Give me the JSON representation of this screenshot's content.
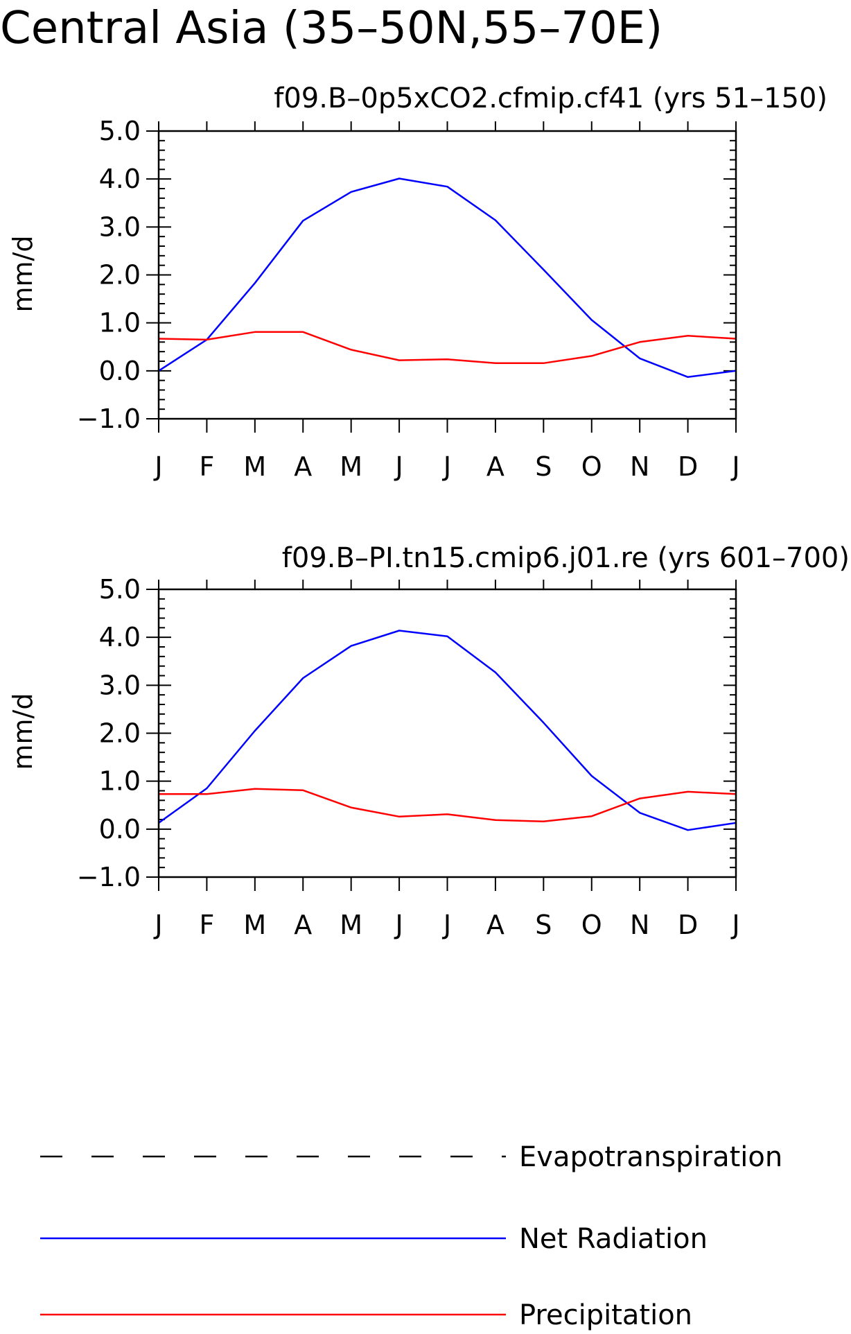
{
  "title": "Central Asia (35–50N,55–70E)",
  "colors": {
    "net_radiation": "#0000ff",
    "precipitation": "#ff0000",
    "evapotranspiration": "#000000"
  },
  "chart_data": [
    {
      "type": "line",
      "title": "f09.B–0p5xCO2.cfmip.cf41 (yrs 51–150)",
      "xlabel": "",
      "ylabel": "mm/d",
      "categories": [
        "J",
        "F",
        "M",
        "A",
        "M",
        "J",
        "J",
        "A",
        "S",
        "O",
        "N",
        "D",
        "J"
      ],
      "ylim": [
        -1.0,
        5.0
      ],
      "yticks": [
        "5.0",
        "4.0",
        "3.0",
        "2.0",
        "1.0",
        "0.0",
        "−1.0"
      ],
      "grid": false,
      "series": [
        {
          "name": "Net Radiation",
          "color": "#0000ff",
          "values": [
            0.0,
            0.65,
            1.83,
            3.13,
            3.73,
            4.01,
            3.84,
            3.14,
            2.11,
            1.06,
            0.26,
            -0.13,
            0.0
          ]
        },
        {
          "name": "Precipitation",
          "color": "#ff0000",
          "values": [
            0.67,
            0.65,
            0.81,
            0.81,
            0.44,
            0.22,
            0.24,
            0.16,
            0.16,
            0.31,
            0.6,
            0.73,
            0.67
          ]
        }
      ]
    },
    {
      "type": "line",
      "title": "f09.B–PI.tn15.cmip6.j01.re (yrs 601–700)",
      "xlabel": "",
      "ylabel": "mm/d",
      "categories": [
        "J",
        "F",
        "M",
        "A",
        "M",
        "J",
        "J",
        "A",
        "S",
        "O",
        "N",
        "D",
        "J"
      ],
      "ylim": [
        -1.0,
        5.0
      ],
      "yticks": [
        "5.0",
        "4.0",
        "3.0",
        "2.0",
        "1.0",
        "0.0",
        "−1.0"
      ],
      "grid": false,
      "series": [
        {
          "name": "Net Radiation",
          "color": "#0000ff",
          "values": [
            0.13,
            0.85,
            2.05,
            3.15,
            3.82,
            4.14,
            4.02,
            3.27,
            2.22,
            1.11,
            0.34,
            -0.02,
            0.13
          ]
        },
        {
          "name": "Precipitation",
          "color": "#ff0000",
          "values": [
            0.73,
            0.73,
            0.84,
            0.81,
            0.45,
            0.26,
            0.31,
            0.19,
            0.16,
            0.27,
            0.64,
            0.78,
            0.73
          ]
        }
      ]
    }
  ],
  "legend": {
    "placement": "bottom",
    "items": [
      {
        "label": "Evapotranspiration",
        "style": "dashed",
        "color": "#000000"
      },
      {
        "label": "Net Radiation",
        "style": "solid",
        "color": "#0000ff"
      },
      {
        "label": "Precipitation",
        "style": "solid",
        "color": "#ff0000"
      }
    ]
  }
}
